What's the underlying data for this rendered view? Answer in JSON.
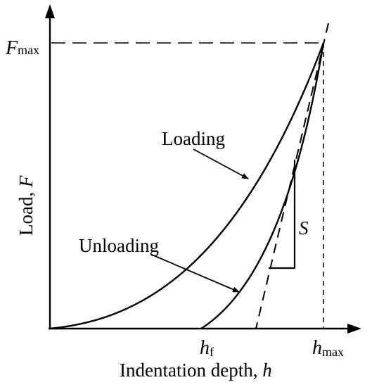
{
  "diagram": {
    "type": "indentation load-depth curve",
    "axes": {
      "y_label": "Load, ",
      "y_symbol": "F",
      "x_label": "Indentation depth, ",
      "x_symbol": "h"
    },
    "markers": {
      "fmax_symbol": "F",
      "fmax_sub": "max",
      "hf_symbol": "h",
      "hf_sub": "f",
      "hmax_symbol": "h",
      "hmax_sub": "max"
    },
    "curves": {
      "loading_label": "Loading",
      "unloading_label": "Unloading",
      "stiffness_label": "S"
    }
  }
}
